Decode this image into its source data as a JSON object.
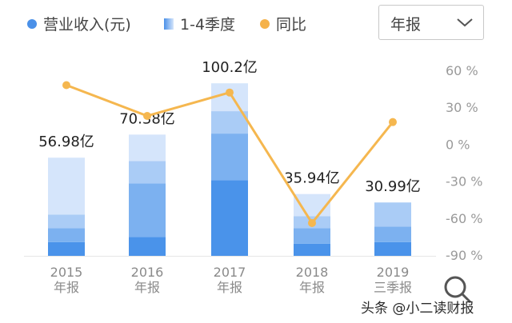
{
  "legend": [
    {
      "label": "营业收入(元)",
      "color": "#4a90e8",
      "shape": "dot"
    },
    {
      "label": "1-4季度",
      "color": "#4a90e8",
      "shape": "gradient-square"
    },
    {
      "label": "同比",
      "color": "#f5b24a",
      "shape": "dot"
    }
  ],
  "period_select": {
    "value": "年报",
    "icon": "chevron-down-icon"
  },
  "watermark": "头条 @小二读财报",
  "search": {
    "icon": "search-icon"
  },
  "colors": {
    "q1": "#4a93ea",
    "q2": "#7cb1f0",
    "q3": "#aaccf6",
    "q4": "#d5e5fb",
    "line": "#f5b74f"
  },
  "chart_data": {
    "type": "bar",
    "categories": [
      [
        "2015",
        "年报"
      ],
      [
        "2016",
        "年报"
      ],
      [
        "2017",
        "年报"
      ],
      [
        "2018",
        "年报"
      ],
      [
        "2019",
        "三季报"
      ]
    ],
    "total_labels": [
      "56.98亿",
      "70.38亿",
      "100.2亿",
      "35.94亿",
      "30.99亿"
    ],
    "totals": [
      56.98,
      70.38,
      100.2,
      35.94,
      30.99
    ],
    "series": [
      {
        "name": "1-4季度",
        "quarters": [
          [
            8.0,
            8.0,
            8.0,
            33.0
          ],
          [
            11.0,
            31.0,
            13.0,
            15.4
          ],
          [
            44.0,
            27.0,
            13.0,
            16.2
          ],
          [
            7.0,
            9.0,
            7.0,
            12.9
          ],
          [
            8.0,
            9.0,
            14.0
          ]
        ]
      },
      {
        "name": "同比",
        "type": "line",
        "values": [
          48,
          23,
          42,
          -64,
          18
        ]
      }
    ],
    "y_right": {
      "ticks": [
        "60 %",
        "30 %",
        "0 %",
        "-30 %",
        "-60 %",
        "-90 %"
      ],
      "tick_values": [
        60,
        30,
        0,
        -30,
        -60,
        -90
      ],
      "range": [
        -90,
        60
      ]
    },
    "y_left_range": [
      0,
      130
    ],
    "grid": false,
    "legend_position": "top-left"
  }
}
